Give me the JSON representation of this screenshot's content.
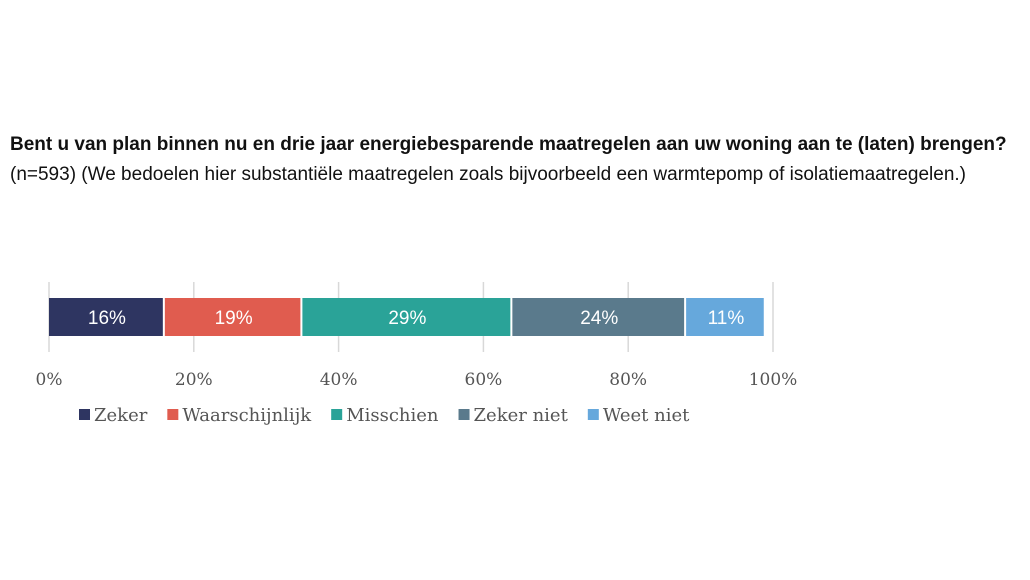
{
  "question": {
    "bold": "Bent u van plan binnen nu en drie jaar energiebesparende maatregelen aan uw woning aan te (laten) brengen?",
    "rest": " (n=593) (We bedoelen hier substantiële maatregelen zoals bijvoorbeeld een warmtepomp of isolatiemaatregelen.)"
  },
  "chart_data": {
    "type": "bar",
    "orientation": "horizontal",
    "stacked": true,
    "categories": [
      ""
    ],
    "series": [
      {
        "name": "Zeker",
        "values": [
          16
        ],
        "label": "16%",
        "color": "#2e3561"
      },
      {
        "name": "Waarschijnlijk",
        "values": [
          19
        ],
        "label": "19%",
        "color": "#e05c4f"
      },
      {
        "name": "Misschien",
        "values": [
          29
        ],
        "label": "29%",
        "color": "#2aa398"
      },
      {
        "name": "Zeker niet",
        "values": [
          24
        ],
        "label": "24%",
        "color": "#5a7a8c"
      },
      {
        "name": "Weet niet",
        "values": [
          11
        ],
        "label": "11%",
        "color": "#66a8dc"
      }
    ],
    "xlim": [
      0,
      100
    ],
    "xticks": [
      {
        "value": 0,
        "label": "0%"
      },
      {
        "value": 20,
        "label": "20%"
      },
      {
        "value": 40,
        "label": "40%"
      },
      {
        "value": 60,
        "label": "60%"
      },
      {
        "value": 80,
        "label": "80%"
      },
      {
        "value": 100,
        "label": "100%"
      }
    ],
    "grid": true,
    "legend_position": "bottom-left",
    "gridline_color": "#d8d8d8"
  }
}
